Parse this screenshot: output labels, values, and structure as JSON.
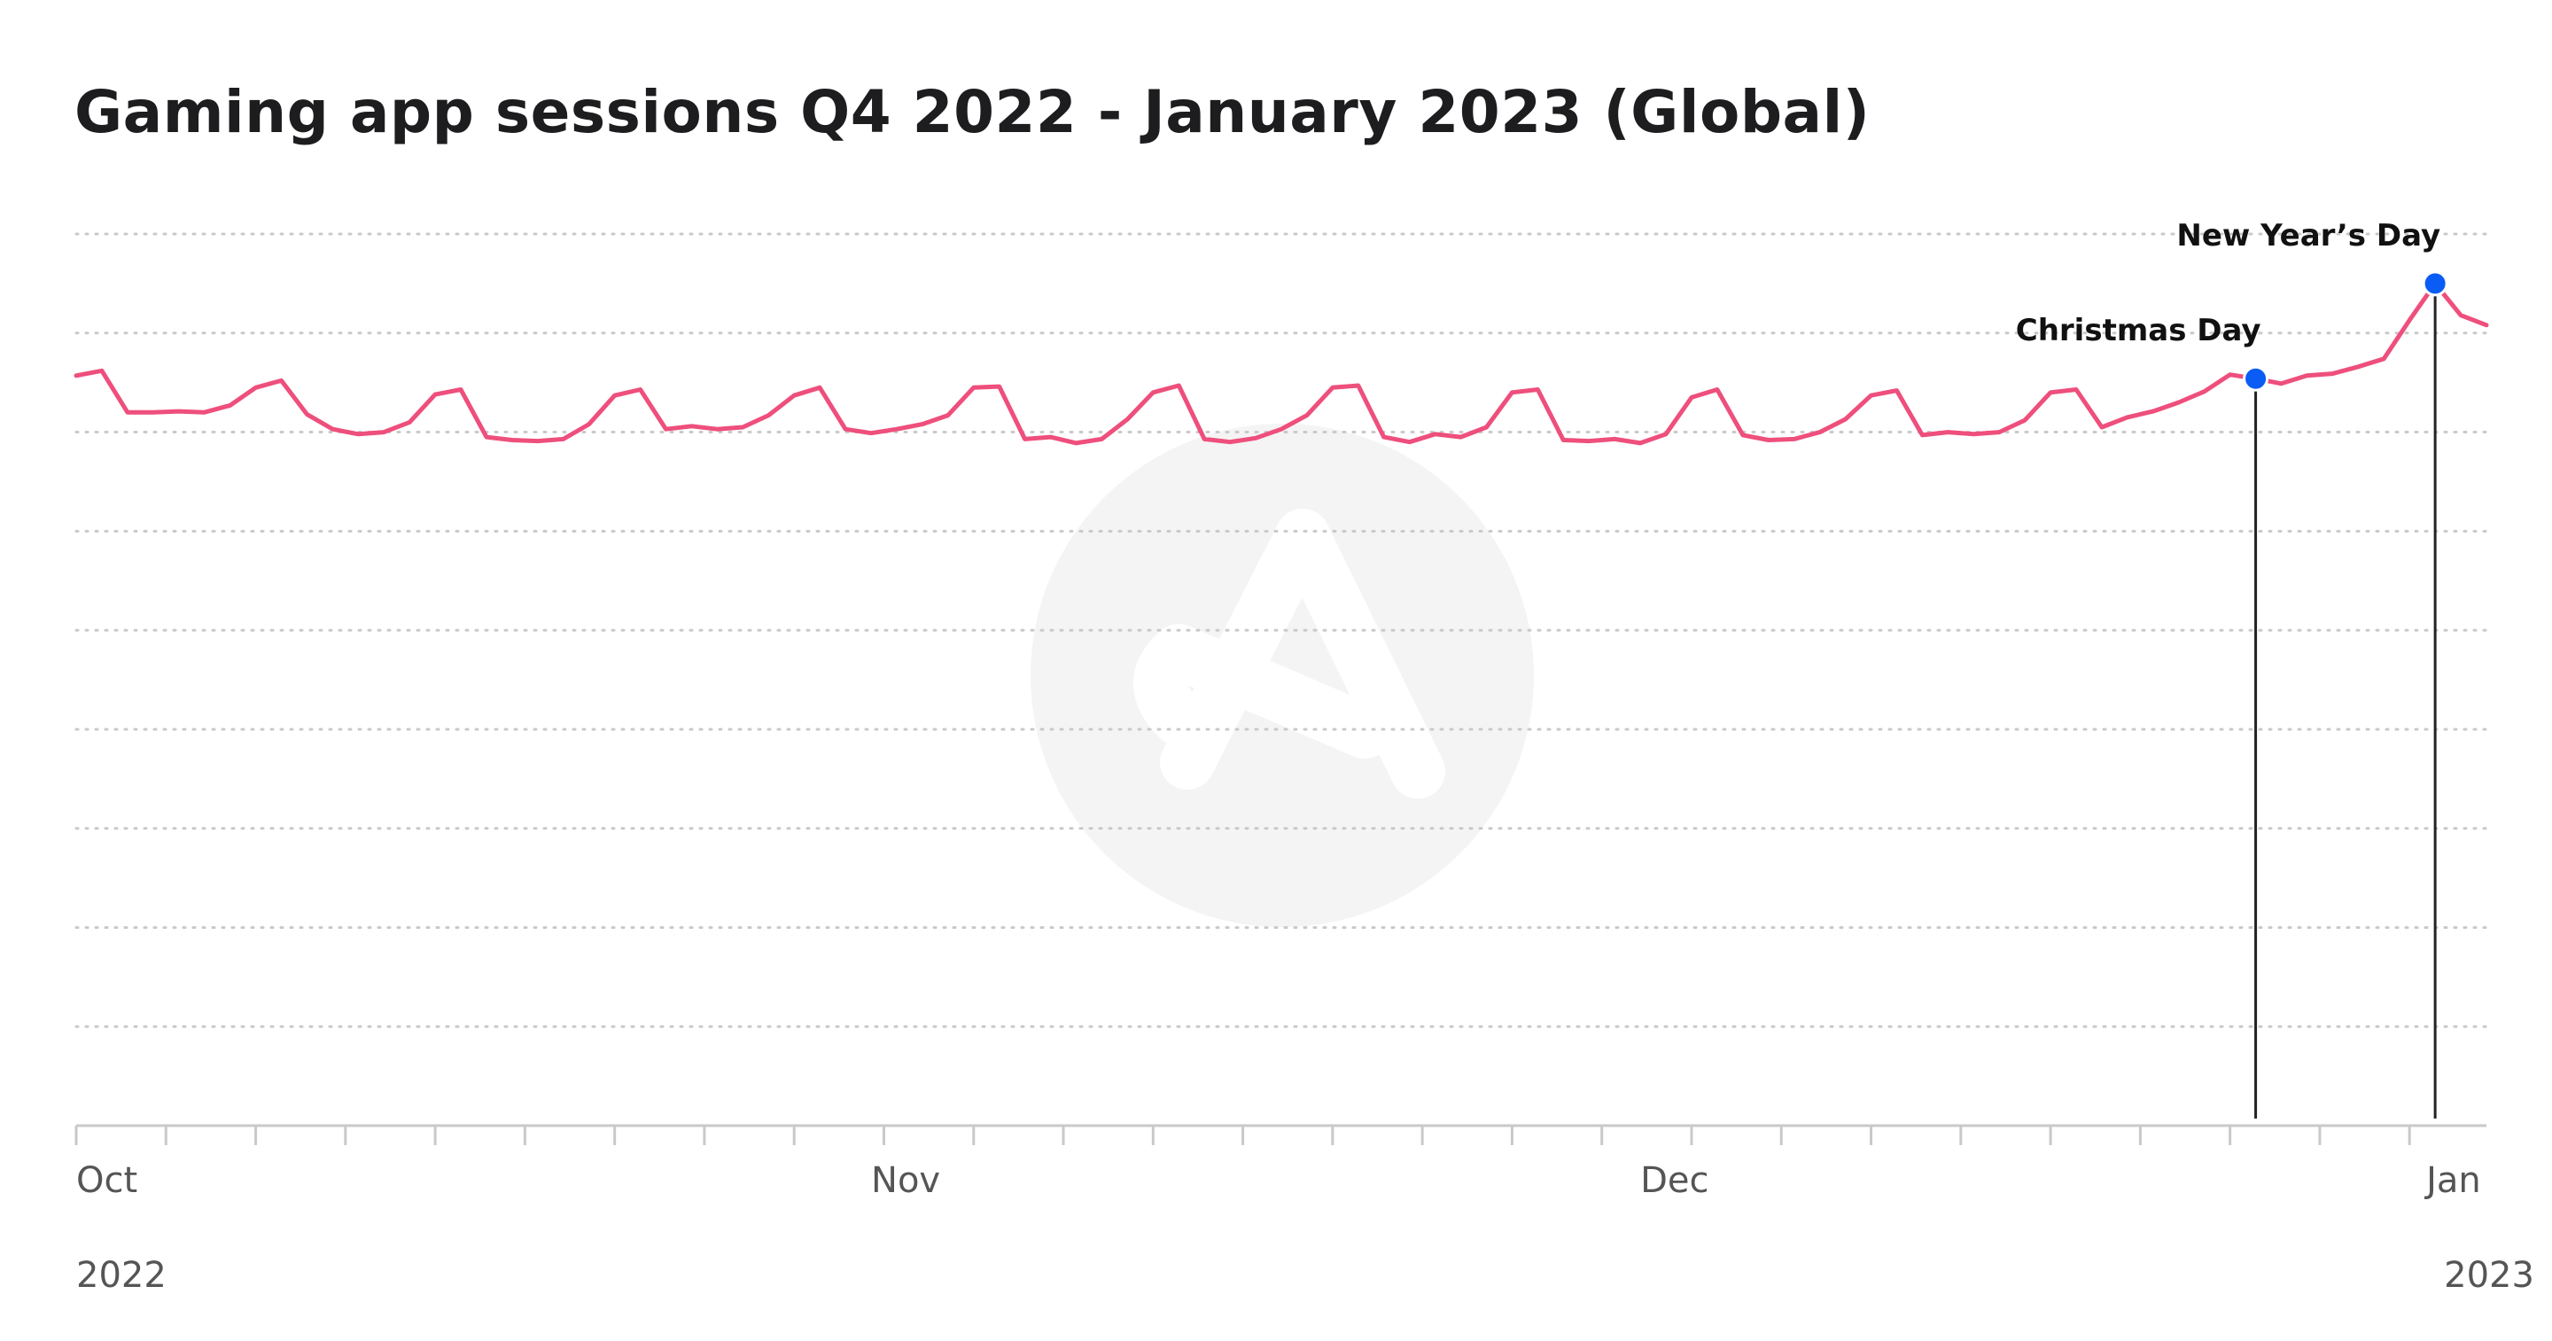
{
  "chart_data": {
    "type": "line",
    "title": "Gaming app sessions Q4 2022 - January 2023 (Global)",
    "xlabel": "",
    "ylabel": "",
    "x_axis": {
      "type": "date",
      "start": "2022-10-01",
      "end": "2023-01-03",
      "month_labels": [
        {
          "label": "Oct",
          "date": "2022-10-01"
        },
        {
          "label": "Nov",
          "date": "2022-11-01"
        },
        {
          "label": "Dec",
          "date": "2022-12-01"
        },
        {
          "label": "Jan",
          "date": "2023-01-01"
        }
      ],
      "year_labels": [
        {
          "label": "2022",
          "date": "2022-10-01"
        },
        {
          "label": "2023",
          "date": "2023-01-01"
        }
      ]
    },
    "y_axis": {
      "ylim": [
        0,
        9
      ],
      "gridlines": 9,
      "tick_labels_shown": false
    },
    "grid": true,
    "series": [
      {
        "color": "#ee4f7c",
        "points": [
          {
            "x": "2022-10-01",
            "y": 7.57
          },
          {
            "x": "2022-10-02",
            "y": 7.62
          },
          {
            "x": "2022-10-03",
            "y": 7.2
          },
          {
            "x": "2022-10-04",
            "y": 7.2
          },
          {
            "x": "2022-10-05",
            "y": 7.21
          },
          {
            "x": "2022-10-06",
            "y": 7.2
          },
          {
            "x": "2022-10-07",
            "y": 7.27
          },
          {
            "x": "2022-10-08",
            "y": 7.45
          },
          {
            "x": "2022-10-09",
            "y": 7.52
          },
          {
            "x": "2022-10-10",
            "y": 7.18
          },
          {
            "x": "2022-10-11",
            "y": 7.03
          },
          {
            "x": "2022-10-12",
            "y": 6.98
          },
          {
            "x": "2022-10-13",
            "y": 7.0
          },
          {
            "x": "2022-10-14",
            "y": 7.1
          },
          {
            "x": "2022-10-15",
            "y": 7.38
          },
          {
            "x": "2022-10-16",
            "y": 7.43
          },
          {
            "x": "2022-10-17",
            "y": 6.95
          },
          {
            "x": "2022-10-18",
            "y": 6.92
          },
          {
            "x": "2022-10-19",
            "y": 6.91
          },
          {
            "x": "2022-10-20",
            "y": 6.93
          },
          {
            "x": "2022-10-21",
            "y": 7.08
          },
          {
            "x": "2022-10-22",
            "y": 7.37
          },
          {
            "x": "2022-10-23",
            "y": 7.43
          },
          {
            "x": "2022-10-24",
            "y": 7.03
          },
          {
            "x": "2022-10-25",
            "y": 7.06
          },
          {
            "x": "2022-10-26",
            "y": 7.03
          },
          {
            "x": "2022-10-27",
            "y": 7.05
          },
          {
            "x": "2022-10-28",
            "y": 7.17
          },
          {
            "x": "2022-10-29",
            "y": 7.37
          },
          {
            "x": "2022-10-30",
            "y": 7.45
          },
          {
            "x": "2022-10-31",
            "y": 7.03
          },
          {
            "x": "2022-11-01",
            "y": 6.99
          },
          {
            "x": "2022-11-02",
            "y": 7.03
          },
          {
            "x": "2022-11-03",
            "y": 7.08
          },
          {
            "x": "2022-11-04",
            "y": 7.17
          },
          {
            "x": "2022-11-05",
            "y": 7.45
          },
          {
            "x": "2022-11-06",
            "y": 7.46
          },
          {
            "x": "2022-11-07",
            "y": 6.93
          },
          {
            "x": "2022-11-08",
            "y": 6.95
          },
          {
            "x": "2022-11-09",
            "y": 6.89
          },
          {
            "x": "2022-11-10",
            "y": 6.93
          },
          {
            "x": "2022-11-11",
            "y": 7.13
          },
          {
            "x": "2022-11-12",
            "y": 7.4
          },
          {
            "x": "2022-11-13",
            "y": 7.47
          },
          {
            "x": "2022-11-14",
            "y": 6.93
          },
          {
            "x": "2022-11-15",
            "y": 6.9
          },
          {
            "x": "2022-11-16",
            "y": 6.94
          },
          {
            "x": "2022-11-17",
            "y": 7.03
          },
          {
            "x": "2022-11-18",
            "y": 7.17
          },
          {
            "x": "2022-11-19",
            "y": 7.45
          },
          {
            "x": "2022-11-20",
            "y": 7.47
          },
          {
            "x": "2022-11-21",
            "y": 6.95
          },
          {
            "x": "2022-11-22",
            "y": 6.9
          },
          {
            "x": "2022-11-23",
            "y": 6.98
          },
          {
            "x": "2022-11-24",
            "y": 6.95
          },
          {
            "x": "2022-11-25",
            "y": 7.05
          },
          {
            "x": "2022-11-26",
            "y": 7.4
          },
          {
            "x": "2022-11-27",
            "y": 7.43
          },
          {
            "x": "2022-11-28",
            "y": 6.92
          },
          {
            "x": "2022-11-29",
            "y": 6.91
          },
          {
            "x": "2022-11-30",
            "y": 6.93
          },
          {
            "x": "2022-12-01",
            "y": 6.89
          },
          {
            "x": "2022-12-02",
            "y": 6.98
          },
          {
            "x": "2022-12-03",
            "y": 7.35
          },
          {
            "x": "2022-12-04",
            "y": 7.43
          },
          {
            "x": "2022-12-05",
            "y": 6.97
          },
          {
            "x": "2022-12-06",
            "y": 6.92
          },
          {
            "x": "2022-12-07",
            "y": 6.93
          },
          {
            "x": "2022-12-08",
            "y": 7.0
          },
          {
            "x": "2022-12-09",
            "y": 7.13
          },
          {
            "x": "2022-12-10",
            "y": 7.37
          },
          {
            "x": "2022-12-11",
            "y": 7.42
          },
          {
            "x": "2022-12-12",
            "y": 6.97
          },
          {
            "x": "2022-12-13",
            "y": 7.0
          },
          {
            "x": "2022-12-14",
            "y": 6.98
          },
          {
            "x": "2022-12-15",
            "y": 7.0
          },
          {
            "x": "2022-12-16",
            "y": 7.12
          },
          {
            "x": "2022-12-17",
            "y": 7.4
          },
          {
            "x": "2022-12-18",
            "y": 7.43
          },
          {
            "x": "2022-12-19",
            "y": 7.05
          },
          {
            "x": "2022-12-20",
            "y": 7.15
          },
          {
            "x": "2022-12-21",
            "y": 7.21
          },
          {
            "x": "2022-12-22",
            "y": 7.3
          },
          {
            "x": "2022-12-23",
            "y": 7.41
          },
          {
            "x": "2022-12-24",
            "y": 7.58
          },
          {
            "x": "2022-12-25",
            "y": 7.54
          },
          {
            "x": "2022-12-26",
            "y": 7.49
          },
          {
            "x": "2022-12-27",
            "y": 7.57
          },
          {
            "x": "2022-12-28",
            "y": 7.59
          },
          {
            "x": "2022-12-29",
            "y": 7.66
          },
          {
            "x": "2022-12-30",
            "y": 7.74
          },
          {
            "x": "2022-12-31",
            "y": 8.13
          },
          {
            "x": "2023-01-01",
            "y": 8.5
          },
          {
            "x": "2023-01-02",
            "y": 8.18
          },
          {
            "x": "2023-01-03",
            "y": 8.08
          }
        ]
      }
    ],
    "annotations": [
      {
        "label": "Christmas Day",
        "x": "2022-12-25",
        "y": 7.54,
        "marker_color": "#0a5cf5"
      },
      {
        "label": "New Year’s Day",
        "x": "2023-01-01",
        "y": 8.5,
        "marker_color": "#0a5cf5"
      }
    ],
    "watermark": "logo"
  }
}
